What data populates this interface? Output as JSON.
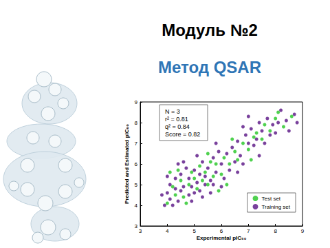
{
  "chart_data": {
    "type": "scatter",
    "title": "Модуль №2",
    "subtitle": "Метод QSAR",
    "x_label": "Experimental pIC₅₀",
    "y_label": "Predicted and Estimated pIC₅₀",
    "annotations": [
      "N = 3",
      "r² = 0.81",
      "q² = 0.84",
      "Score = 0.82"
    ],
    "xlim": [
      3,
      9
    ],
    "xticks": [
      3,
      4,
      5,
      6,
      7,
      8,
      9
    ],
    "ylim": [
      3,
      9
    ],
    "yticks": [
      3,
      4,
      5,
      6,
      7,
      8,
      9
    ],
    "grid": false,
    "legend": "bottom-right",
    "marker": "circle",
    "series": [
      {
        "name": "Test set",
        "color": "#3ccc3c",
        "x": [
          4.0,
          4.2,
          4.3,
          4.5,
          4.6,
          4.8,
          4.9,
          5.0,
          5.1,
          5.2,
          5.3,
          5.4,
          5.5,
          5.6,
          5.7,
          5.8,
          6.0,
          6.1,
          6.3,
          6.5,
          6.6,
          6.8,
          7.0,
          7.2,
          7.3,
          7.5,
          7.6,
          7.8,
          8.0,
          8.1,
          8.3,
          8.6,
          4.1,
          4.4,
          5.9,
          6.4,
          7.1,
          4.7,
          5.5,
          6.2
        ],
        "values": [
          4.1,
          4.9,
          4.5,
          5.2,
          4.4,
          5.0,
          5.6,
          5.3,
          4.8,
          5.9,
          5.2,
          5.6,
          5.0,
          6.1,
          5.4,
          6.0,
          5.5,
          6.3,
          6.0,
          6.6,
          6.2,
          7.0,
          6.7,
          7.3,
          7.5,
          7.2,
          7.9,
          7.6,
          8.2,
          8.5,
          7.8,
          8.3,
          5.6,
          5.7,
          4.7,
          7.2,
          6.2,
          4.1,
          6.5,
          5.0
        ]
      },
      {
        "name": "Training set",
        "color": "#6a2c91",
        "x": [
          3.9,
          4.0,
          4.1,
          4.1,
          4.2,
          4.3,
          4.3,
          4.4,
          4.5,
          4.5,
          4.6,
          4.7,
          4.8,
          4.8,
          4.9,
          5.0,
          5.0,
          5.1,
          5.2,
          5.2,
          5.3,
          5.4,
          5.4,
          5.5,
          5.6,
          5.7,
          5.8,
          5.9,
          6.0,
          6.1,
          6.2,
          6.3,
          6.4,
          6.5,
          6.6,
          6.7,
          6.8,
          6.9,
          7.0,
          7.1,
          7.2,
          7.3,
          7.4,
          7.5,
          7.6,
          7.7,
          7.8,
          7.9,
          8.0,
          8.1,
          8.2,
          8.4,
          8.5,
          8.7,
          4.0,
          4.6,
          5.1,
          5.6,
          6.0,
          6.6,
          7.4,
          3.8,
          4.9,
          5.3,
          6.8,
          7.0,
          5.8,
          4.4,
          8.8,
          5.7
        ],
        "values": [
          4.0,
          4.6,
          4.3,
          5.0,
          4.0,
          4.8,
          5.3,
          4.2,
          4.7,
          5.5,
          4.9,
          5.8,
          4.5,
          5.3,
          4.9,
          4.6,
          5.7,
          5.1,
          4.7,
          5.5,
          6.1,
          5.0,
          5.4,
          5.8,
          5.2,
          6.3,
          5.6,
          6.6,
          6.0,
          5.3,
          6.5,
          5.7,
          6.8,
          6.1,
          7.1,
          6.4,
          6.0,
          7.4,
          7.0,
          7.7,
          6.9,
          7.2,
          8.0,
          7.6,
          7.0,
          8.2,
          7.4,
          7.9,
          7.5,
          8.0,
          8.6,
          8.1,
          7.6,
          8.4,
          5.4,
          6.1,
          6.4,
          4.6,
          4.9,
          5.6,
          6.4,
          4.5,
          4.2,
          4.4,
          7.8,
          8.3,
          7.0,
          6.0,
          8.0,
          5.0
        ]
      }
    ]
  }
}
